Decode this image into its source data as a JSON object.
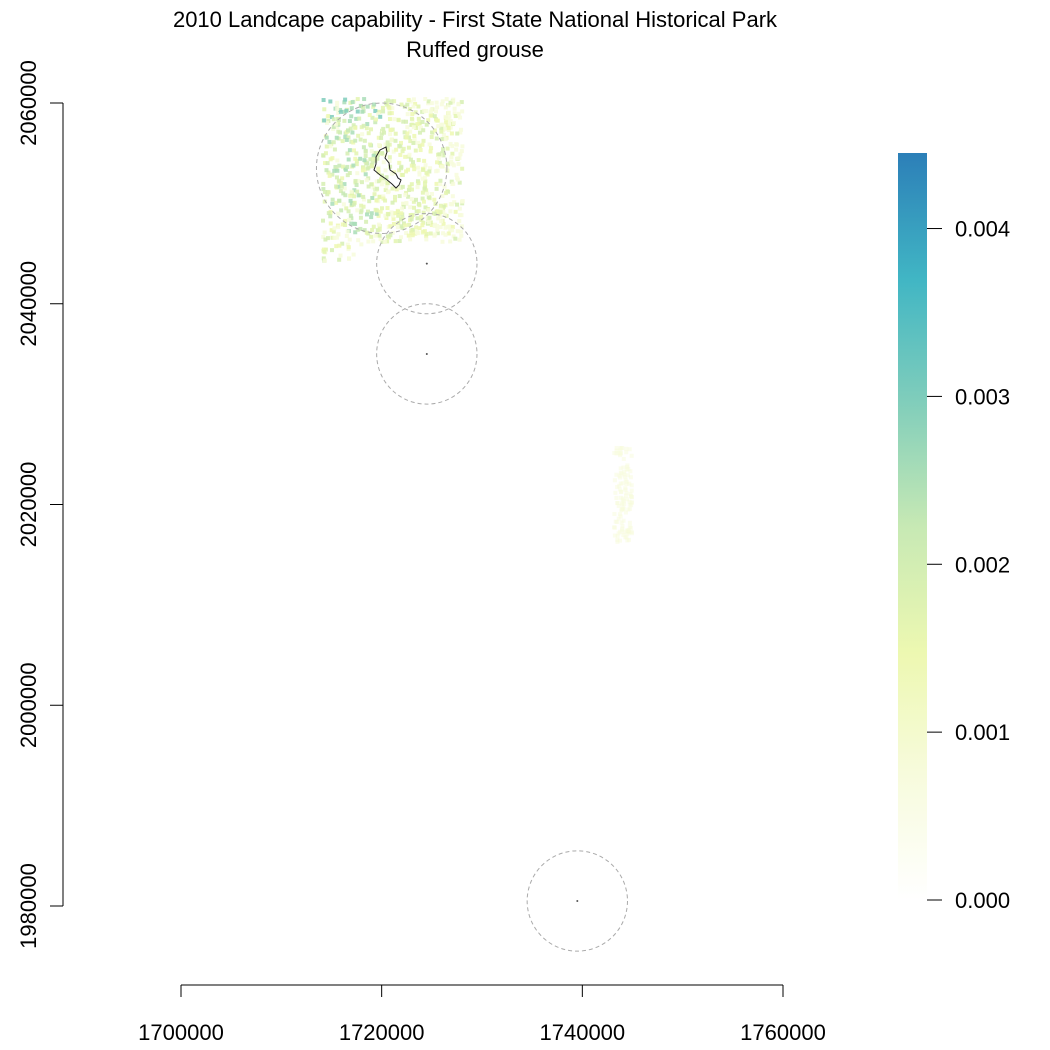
{
  "title": "2010 Landcape capability - First State National Historical Park",
  "subtitle": "Ruffed grouse",
  "map": {
    "x_axis": {
      "range": [
        1700000,
        1760000
      ],
      "ticks": [
        "1700000",
        "1720000",
        "1740000",
        "1760000"
      ]
    },
    "y_axis": {
      "range": [
        1980000,
        2060000
      ],
      "ticks": [
        "1980000",
        "2000000",
        "2020000",
        "2040000",
        "2060000"
      ]
    },
    "buffers": [
      {
        "center": [
          1720000,
          2053500
        ],
        "radius_m": 6500
      },
      {
        "center": [
          1724500,
          2044000
        ],
        "radius_m": 5000
      },
      {
        "center": [
          1724500,
          2035000
        ],
        "radius_m": 5000
      },
      {
        "center": [
          1739500,
          1980500
        ],
        "radius_m": 5000
      }
    ],
    "park_points": [
      [
        1724500,
        2044000
      ],
      [
        1724500,
        2035000
      ],
      [
        1739500,
        1980500
      ]
    ],
    "colors": {
      "buffer_line": "#aaaaaa",
      "park_outline": "#222222"
    }
  },
  "legend": {
    "ticks": [
      "0.000",
      "0.001",
      "0.002",
      "0.003",
      "0.004"
    ],
    "max": 0.00445,
    "colors": [
      "#ffffff",
      "#f7fbdc",
      "#edf8b1",
      "#c7e9b4",
      "#7fcdbb",
      "#41b6c4",
      "#2c7fb8"
    ]
  }
}
